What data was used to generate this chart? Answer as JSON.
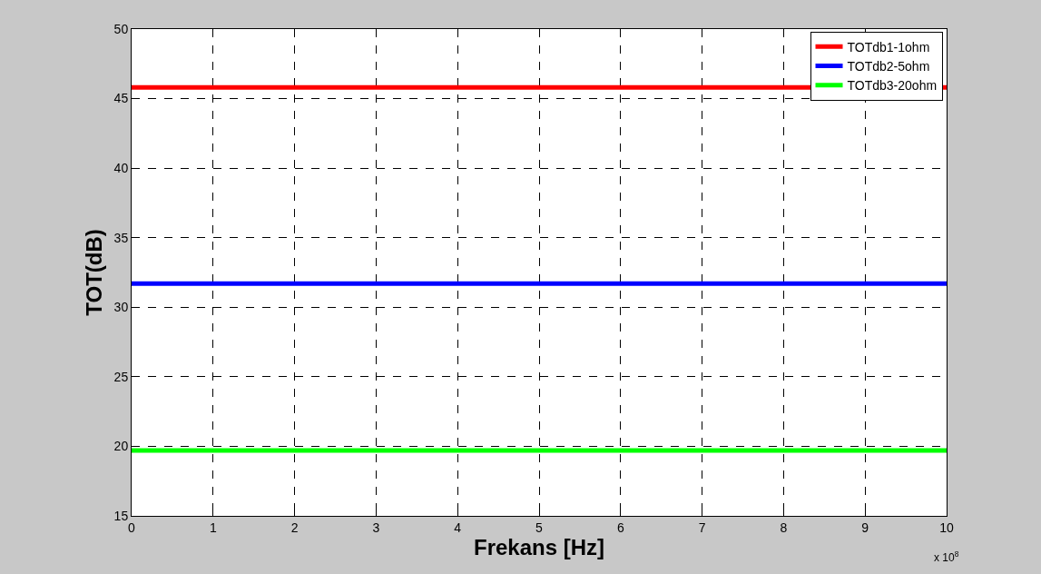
{
  "chart_data": {
    "type": "line",
    "xlabel": "Frekans [Hz]",
    "ylabel": "TOT(dB)",
    "annotations": [
      "x 10$^{8}$"
    ],
    "x": [
      0,
      10
    ],
    "series": [
      {
        "name": "TOTdb1-1ohm",
        "color": "#ff0000",
        "values": [
          45.8,
          45.8
        ]
      },
      {
        "name": "TOTdb2-5ohm",
        "color": "#0000ff",
        "values": [
          31.7,
          31.7
        ]
      },
      {
        "name": "TOTdb3-20ohm",
        "color": "#00ff00",
        "values": [
          19.7,
          19.7
        ]
      }
    ],
    "xlim": [
      0,
      10
    ],
    "xticks": [
      0,
      1,
      2,
      3,
      4,
      5,
      6,
      7,
      8,
      9,
      10
    ],
    "ylim": [
      15,
      50
    ],
    "yticks": [
      15,
      20,
      25,
      30,
      35,
      40,
      45,
      50
    ],
    "grid": true,
    "legend": "top right",
    "marker": "none",
    "line_style": "solid"
  }
}
